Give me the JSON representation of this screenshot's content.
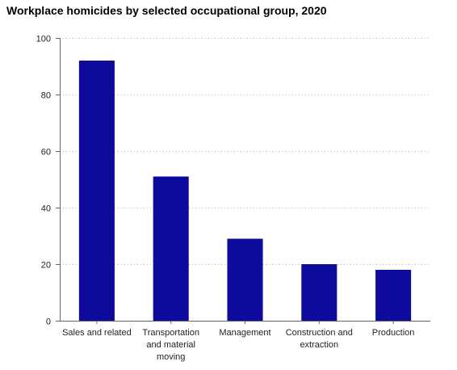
{
  "title": "Workplace homicides by selected occupational group, 2020",
  "colors": {
    "bar": "#0d0a9c",
    "axis": "#666666",
    "grid": "#bbbbbb"
  },
  "chart_data": {
    "type": "bar",
    "title": "Workplace homicides by selected occupational group, 2020",
    "categories": [
      [
        "Sales and related"
      ],
      [
        "Transportation",
        "and material",
        "moving"
      ],
      [
        "Management"
      ],
      [
        "Construction and",
        "extraction"
      ],
      [
        "Production"
      ]
    ],
    "values": [
      92,
      51,
      29,
      20,
      18
    ],
    "xlabel": "",
    "ylabel": "",
    "ylim": [
      0,
      100
    ],
    "yticks": [
      "0",
      "20",
      "40",
      "60",
      "80",
      "100"
    ],
    "grid": true,
    "grid_style": "dotted"
  }
}
